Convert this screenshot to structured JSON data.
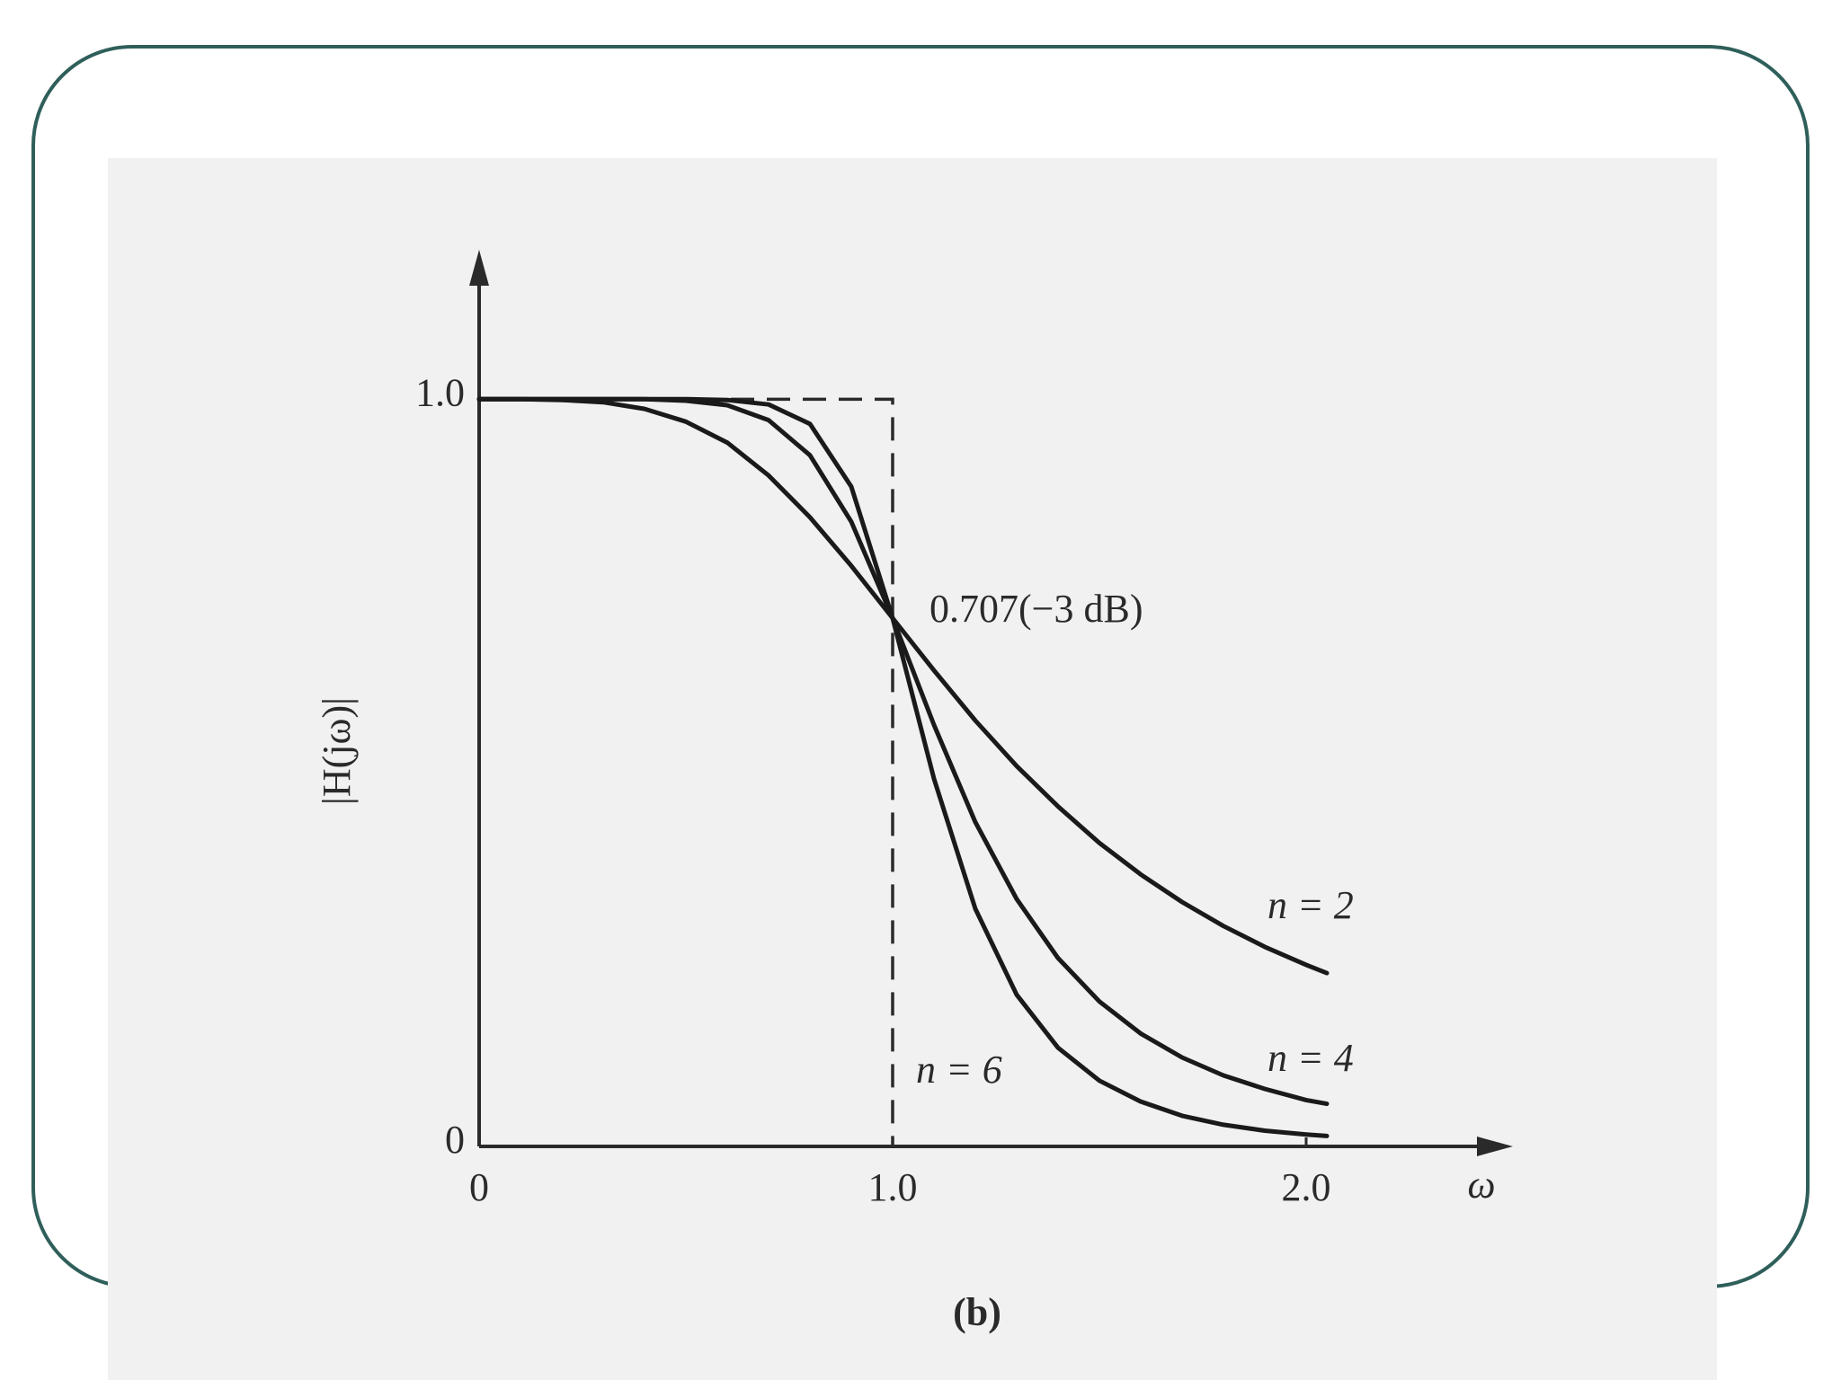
{
  "chart_data": {
    "type": "line",
    "x": [
      0,
      0.1,
      0.2,
      0.3,
      0.4,
      0.5,
      0.6,
      0.7,
      0.8,
      0.9,
      1.0,
      1.1,
      1.2,
      1.3,
      1.4,
      1.5,
      1.6,
      1.7,
      1.8,
      1.9,
      2.0,
      2.05
    ],
    "series": [
      {
        "name": "n = 2",
        "color": "#1a1a1a",
        "values": [
          1,
          1,
          0.999,
          0.996,
          0.987,
          0.97,
          0.942,
          0.898,
          0.842,
          0.777,
          0.707,
          0.637,
          0.57,
          0.509,
          0.455,
          0.406,
          0.364,
          0.327,
          0.295,
          0.267,
          0.243,
          0.232
        ]
      },
      {
        "name": "n = 4",
        "color": "#1a1a1a",
        "values": [
          1,
          1,
          1,
          1,
          1,
          0.998,
          0.992,
          0.972,
          0.925,
          0.836,
          0.707,
          0.564,
          0.434,
          0.331,
          0.252,
          0.194,
          0.151,
          0.119,
          0.095,
          0.077,
          0.062,
          0.057
        ]
      },
      {
        "name": "n = 6",
        "color": "#1a1a1a",
        "values": [
          1,
          1,
          1,
          1,
          1,
          1,
          0.999,
          0.993,
          0.967,
          0.883,
          0.707,
          0.492,
          0.318,
          0.203,
          0.132,
          0.088,
          0.06,
          0.041,
          0.029,
          0.021,
          0.016,
          0.014
        ]
      }
    ],
    "xlim": [
      0,
      2.5
    ],
    "ylim": [
      0,
      1.2
    ],
    "xticks": [
      0,
      {
        "value": 1,
        "label": "1.0"
      },
      {
        "value": 2,
        "label": "2.0"
      }
    ],
    "yticks": [
      0,
      {
        "value": 1,
        "label": "1.0"
      }
    ],
    "x_label": "ω",
    "y_label": "|H(jω)|",
    "annotation": "0.707(−3 dB)",
    "caption": "(b)"
  }
}
